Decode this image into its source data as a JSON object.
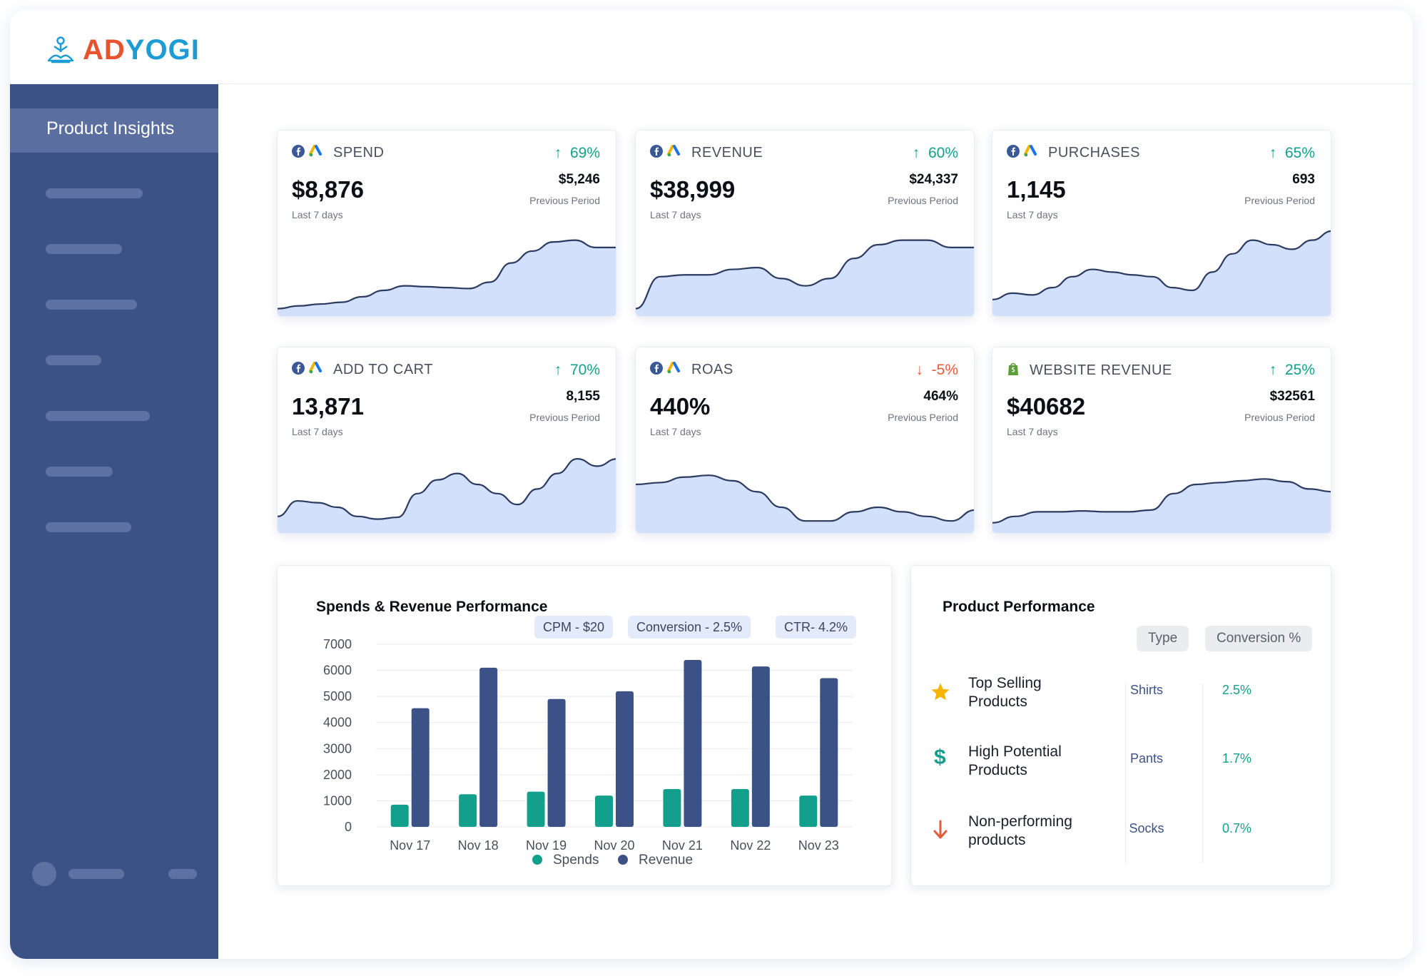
{
  "brand": {
    "logo_ad": "AD",
    "logo_yogi": "YOGI"
  },
  "sidebar": {
    "active_item": "Product Insights"
  },
  "kpis": [
    {
      "title": "SPEND",
      "pct": "69%",
      "trend": "up",
      "value": "$8,876",
      "period": "Last 7 days",
      "previous": "$5,246",
      "previous_label": "Previous Period",
      "source_icons": [
        "facebook-icon",
        "google-ads-icon"
      ]
    },
    {
      "title": "REVENUE",
      "pct": "60%",
      "trend": "up",
      "value": "$38,999",
      "period": "Last 7 days",
      "previous": "$24,337",
      "previous_label": "Previous Period",
      "source_icons": [
        "facebook-icon",
        "google-ads-icon"
      ]
    },
    {
      "title": "PURCHASES",
      "pct": "65%",
      "trend": "up",
      "value": "1,145",
      "period": "Last 7 days",
      "previous": "693",
      "previous_label": "Previous Period",
      "source_icons": [
        "facebook-icon",
        "google-ads-icon"
      ]
    },
    {
      "title": "ADD TO CART",
      "pct": "70%",
      "trend": "up",
      "value": "13,871",
      "period": "Last 7 days",
      "previous": "8,155",
      "previous_label": "Previous Period",
      "source_icons": [
        "facebook-icon",
        "google-ads-icon"
      ]
    },
    {
      "title": "ROAS",
      "pct": "-5%",
      "trend": "down",
      "value": "440%",
      "period": "Last 7 days",
      "previous": "464%",
      "previous_label": "Previous Period",
      "source_icons": [
        "facebook-icon",
        "google-ads-icon"
      ]
    },
    {
      "title": "WEBSITE REVENUE",
      "pct": "25%",
      "trend": "up",
      "value": "$40682",
      "period": "Last 7 days",
      "previous": "$32561",
      "previous_label": "Previous Period",
      "source_icons": [
        "shopify-icon"
      ]
    }
  ],
  "performance": {
    "title": "Spends & Revenue Performance",
    "pills": [
      "CPM - $20",
      "Conversion - 2.5%",
      "CTR- 4.2%"
    ]
  },
  "chart_data": {
    "type": "bar",
    "categories": [
      "Nov 17",
      "Nov 18",
      "Nov 19",
      "Nov 20",
      "Nov 21",
      "Nov 22",
      "Nov 23"
    ],
    "series": [
      {
        "name": "Spends",
        "color": "#12a08c",
        "values": [
          850,
          1250,
          1350,
          1200,
          1450,
          1450,
          1200
        ]
      },
      {
        "name": "Revenue",
        "color": "#3c5286",
        "values": [
          4550,
          6100,
          4900,
          5200,
          6400,
          6150,
          5700
        ]
      }
    ],
    "ylim": [
      0,
      7000
    ],
    "yticks": [
      7000,
      6000,
      5000,
      4000,
      3000,
      2000,
      1000,
      0
    ],
    "legend": "bottom",
    "grid": true
  },
  "product_performance": {
    "title": "Product Performance",
    "col_type": "Type",
    "col_conversion": "Conversion %",
    "rows": [
      {
        "label_1": "Top Selling",
        "label_2": "Products",
        "type": "Shirts",
        "conversion": "2.5%",
        "icon": "star-icon"
      },
      {
        "label_1": "High Potential",
        "label_2": "Products",
        "type": "Pants",
        "conversion": "1.7%",
        "icon": "dollar-icon"
      },
      {
        "label_1": "Non-performing",
        "label_2": "products",
        "type": "Socks",
        "conversion": "0.7%",
        "icon": "arrow-down-icon"
      }
    ]
  },
  "colors": {
    "sidebar": "#3c5286",
    "accent_up": "#12a08c",
    "accent_down": "#e55a3a",
    "area_fill": "#d3e0fb",
    "line": "#2b3a60"
  }
}
